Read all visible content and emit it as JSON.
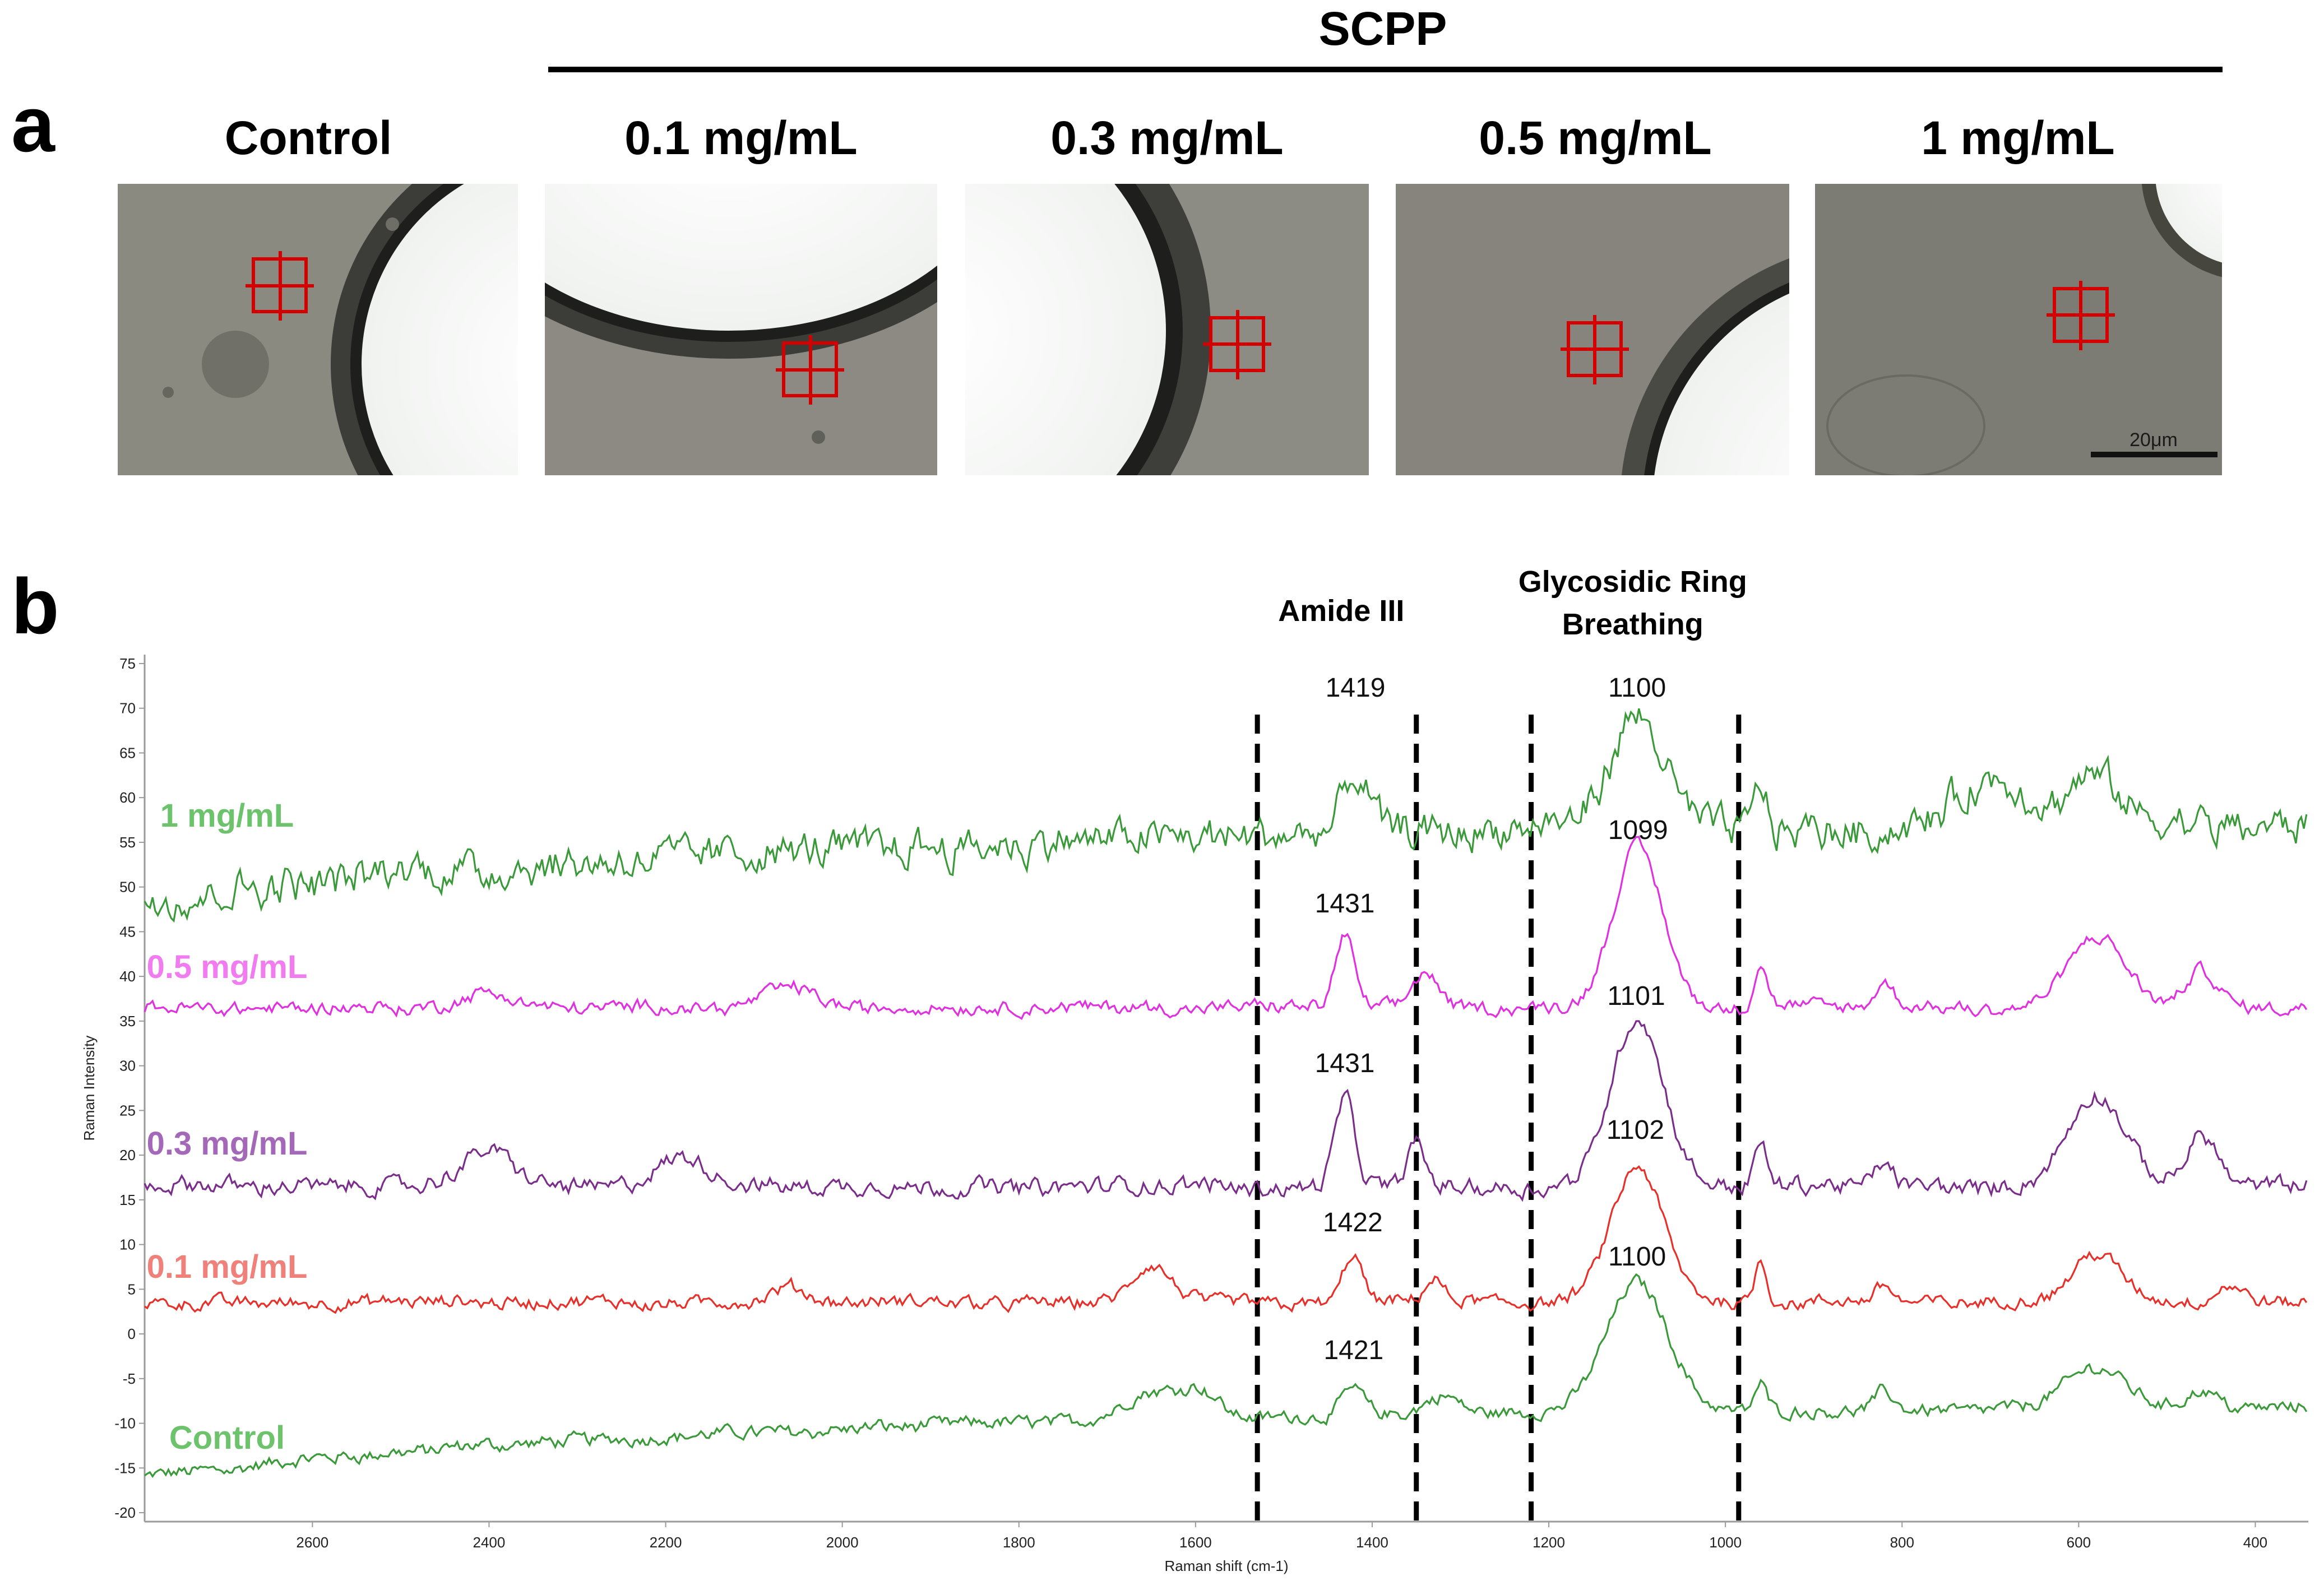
{
  "panel_a": {
    "label": "a",
    "group_label": "SCPP",
    "images": [
      {
        "label": "Control",
        "scene": "control"
      },
      {
        "label": "0.1 mg/mL",
        "scene": "c01"
      },
      {
        "label": "0.3 mg/mL",
        "scene": "c03"
      },
      {
        "label": "0.5 mg/mL",
        "scene": "c05"
      },
      {
        "label": "1 mg/mL",
        "scene": "c1"
      }
    ],
    "scale_bar": "20μm"
  },
  "panel_b": {
    "label": "b"
  },
  "chart_data": {
    "type": "line",
    "title": "",
    "xlabel": "Raman shift (cm-1)",
    "ylabel": "Raman Intensity",
    "xlim": [
      2790,
      340
    ],
    "ylim": [
      -21,
      76
    ],
    "x_ticks": [
      2600,
      2400,
      2200,
      2000,
      1800,
      1600,
      1400,
      1200,
      1000,
      800,
      600,
      400
    ],
    "y_ticks": [
      75,
      70,
      65,
      60,
      55,
      50,
      45,
      40,
      35,
      30,
      25,
      20,
      15,
      10,
      5,
      0,
      -5,
      -10,
      -15,
      -20
    ],
    "region_labels": [
      {
        "text": "Amide III",
        "x_center": 1435
      },
      {
        "text": "Glycosidic Ring",
        "x_center": 1105
      },
      {
        "text": "Breathing",
        "x_center": 1105
      }
    ],
    "dashed_lines_x": [
      1530,
      1350,
      1220,
      985
    ],
    "series": [
      {
        "name": "Control",
        "color": "#3a9a3a",
        "label_color": "#6cc36c",
        "baseline": -16,
        "rise": 8,
        "noise": 0.55,
        "peaks": [
          [
            1650,
            3,
            45
          ],
          [
            1595,
            3,
            30
          ],
          [
            1421,
            3,
            18
          ],
          [
            1320,
            2,
            25
          ],
          [
            1100,
            14.5,
            50
          ],
          [
            960,
            3,
            10
          ],
          [
            820,
            2,
            14
          ],
          [
            580,
            4.5,
            50
          ],
          [
            460,
            2,
            25
          ]
        ],
        "annotations": [
          {
            "x": 1421,
            "label": "1421"
          },
          {
            "x": 1100,
            "label": "1100"
          }
        ]
      },
      {
        "name": "0.1 mg/mL",
        "color": "#e8302b",
        "label_color": "#f0807a",
        "baseline": 3.5,
        "rise": 0,
        "noise": 0.55,
        "peaks": [
          [
            1650,
            4,
            30
          ],
          [
            2060,
            1.5,
            25
          ],
          [
            1422,
            5.5,
            15
          ],
          [
            1330,
            2.5,
            15
          ],
          [
            1100,
            15,
            42
          ],
          [
            960,
            5,
            10
          ],
          [
            820,
            2,
            15
          ],
          [
            580,
            5.5,
            40
          ],
          [
            430,
            2,
            20
          ]
        ],
        "annotations": [
          {
            "x": 1422,
            "label": "1422"
          },
          {
            "x": 1102,
            "label": "1102"
          }
        ]
      },
      {
        "name": "0.3 mg/mL",
        "color": "#7b2d8b",
        "label_color": "#a468b8",
        "baseline": 16.5,
        "rise": 0,
        "noise": 0.7,
        "peaks": [
          [
            2400,
            4,
            40
          ],
          [
            2180,
            3,
            40
          ],
          [
            1431,
            10,
            16
          ],
          [
            1350,
            5,
            15
          ],
          [
            1100,
            19,
            42
          ],
          [
            960,
            5,
            10
          ],
          [
            820,
            2.5,
            15
          ],
          [
            580,
            10,
            45
          ],
          [
            460,
            6,
            25
          ]
        ],
        "annotations": [
          {
            "x": 1431,
            "label": "1431"
          },
          {
            "x": 1101,
            "label": "1101"
          }
        ]
      },
      {
        "name": "0.5 mg/mL",
        "color": "#e030e0",
        "label_color": "#f07cf0",
        "baseline": 36.5,
        "rise": 0,
        "noise": 0.55,
        "peaks": [
          [
            2400,
            1.5,
            40
          ],
          [
            2060,
            2.5,
            40
          ],
          [
            1431,
            8,
            15
          ],
          [
            1340,
            4,
            20
          ],
          [
            1099,
            18,
            40
          ],
          [
            960,
            5,
            10
          ],
          [
            820,
            2.5,
            15
          ],
          [
            580,
            8,
            45
          ],
          [
            460,
            4,
            25
          ]
        ],
        "annotations": [
          {
            "x": 1431,
            "label": "1431"
          },
          {
            "x": 1099,
            "label": "1099"
          }
        ]
      },
      {
        "name": "1 mg/mL",
        "color": "#3a9a3a",
        "label_color": "#6cc36c",
        "baseline": 49,
        "rise": 8,
        "noise": 1.5,
        "peaks": [
          [
            1419,
            6,
            20
          ],
          [
            1100,
            12,
            45
          ],
          [
            960,
            5,
            10
          ],
          [
            700,
            5,
            60
          ],
          [
            580,
            5,
            40
          ]
        ],
        "annotations": [
          {
            "x": 1419,
            "label": "1419"
          },
          {
            "x": 1100,
            "label": "1100"
          }
        ]
      }
    ]
  }
}
